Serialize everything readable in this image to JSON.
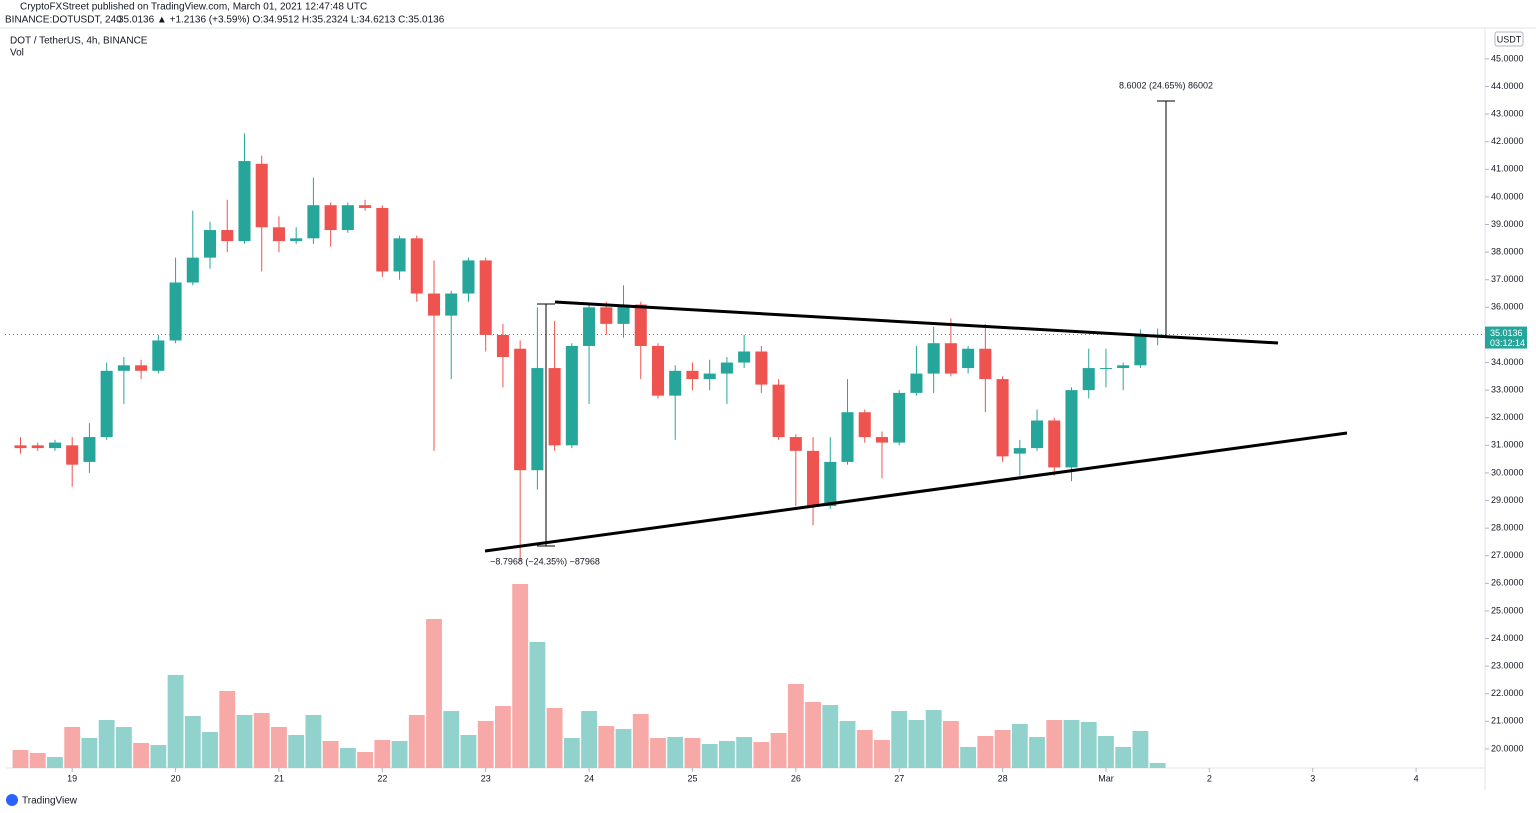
{
  "chart_data": {
    "type": "candlestick",
    "header": {
      "published": "CryptoFXStreet published on TradingView.com, March 01, 2021 12:47:48 UTC",
      "symbol": "BINANCE:DOTUSDT, 240",
      "quote": "35.0136 ▲ +1.2136 (+3.59%) O:34.9512 H:35.2324 L:34.6213 C:35.0136",
      "title": "DOT / TetherUS, 4h, BINANCE",
      "volume_label": "Vol"
    },
    "currency": "USDT",
    "last_price": 35.0136,
    "countdown": "03:12:14",
    "brand": "TradingView",
    "annotations": {
      "up_move": "8.6002 (24.65%) 86002",
      "down_move": "−8.7968 (−24.35%) −87968"
    },
    "open": [
      31.0,
      31.0,
      30.9,
      31.0,
      30.4,
      31.3,
      33.7,
      33.9,
      33.7,
      34.8,
      36.9,
      37.8,
      38.8,
      38.4,
      41.2,
      38.9,
      38.4,
      38.5,
      39.7,
      38.8,
      39.7,
      39.6,
      37.3,
      38.5,
      36.5,
      35.7,
      36.5,
      37.7,
      35.0,
      34.5,
      30.1,
      33.8,
      31.0,
      34.6,
      36.0,
      35.4,
      36.1,
      34.6,
      32.8,
      33.7,
      33.4,
      33.6,
      34.0,
      34.4,
      33.2,
      31.3,
      30.8,
      28.8,
      30.4,
      32.2,
      31.3,
      31.1,
      32.9,
      33.6,
      34.7,
      33.8,
      34.5,
      33.4,
      30.7,
      30.9,
      31.9,
      30.2,
      33.0,
      33.8,
      33.8,
      33.9,
      34.9512
    ],
    "high": [
      31.3,
      31.1,
      31.2,
      31.3,
      31.8,
      34.0,
      34.2,
      34.1,
      35.0,
      37.8,
      39.5,
      39.1,
      39.9,
      42.3,
      41.5,
      39.3,
      38.9,
      40.7,
      39.8,
      39.8,
      39.9,
      39.7,
      38.6,
      38.6,
      37.7,
      36.6,
      37.8,
      37.8,
      35.4,
      34.8,
      36.0,
      35.5,
      34.7,
      36.1,
      36.2,
      36.8,
      36.2,
      34.7,
      33.9,
      34.0,
      34.1,
      34.2,
      35.0,
      34.6,
      33.4,
      31.4,
      31.3,
      31.3,
      33.4,
      32.3,
      31.5,
      33.0,
      34.6,
      35.3,
      35.6,
      34.6,
      35.4,
      33.5,
      31.2,
      32.3,
      32.0,
      33.1,
      34.5,
      34.5,
      34.0,
      35.2,
      35.2324
    ],
    "low": [
      30.7,
      30.8,
      30.8,
      29.5,
      30.0,
      31.2,
      32.5,
      33.4,
      33.6,
      34.7,
      36.8,
      37.4,
      38.0,
      38.3,
      37.3,
      38.0,
      38.3,
      38.3,
      38.2,
      38.7,
      39.5,
      37.1,
      37.0,
      36.2,
      30.8,
      33.4,
      36.2,
      34.4,
      33.1,
      26.8,
      29.4,
      30.8,
      30.9,
      32.5,
      35.0,
      34.9,
      33.4,
      32.7,
      31.2,
      33.0,
      33.0,
      32.5,
      33.8,
      32.9,
      31.2,
      28.8,
      28.1,
      28.7,
      30.3,
      31.1,
      29.8,
      31.0,
      32.8,
      32.9,
      33.5,
      33.6,
      32.2,
      30.4,
      29.9,
      30.8,
      29.9,
      29.7,
      32.7,
      33.1,
      33.0,
      33.8,
      34.6213
    ],
    "close": [
      30.9,
      30.9,
      31.1,
      30.3,
      31.3,
      33.7,
      33.9,
      33.7,
      34.8,
      36.9,
      37.8,
      38.8,
      38.4,
      41.3,
      38.9,
      38.4,
      38.5,
      39.7,
      38.8,
      39.7,
      39.6,
      37.3,
      38.5,
      36.5,
      35.7,
      36.5,
      37.7,
      35.0,
      34.2,
      30.1,
      33.8,
      31.0,
      34.6,
      36.0,
      35.4,
      36.1,
      34.6,
      32.8,
      33.7,
      33.4,
      33.6,
      34.0,
      34.4,
      33.2,
      31.3,
      30.8,
      28.8,
      30.4,
      32.2,
      31.3,
      31.1,
      32.9,
      33.6,
      34.7,
      33.6,
      34.5,
      33.4,
      30.6,
      30.9,
      31.9,
      30.2,
      33.0,
      33.8,
      33.8,
      33.9,
      35.0,
      35.0136
    ],
    "volume": [
      18,
      15,
      11,
      41,
      30,
      48,
      41,
      25,
      23,
      93,
      52,
      36,
      77,
      53,
      55,
      41,
      33,
      53,
      27,
      20,
      16,
      28,
      27,
      53,
      149,
      57,
      33,
      47,
      62,
      184,
      126,
      60,
      30,
      57,
      42,
      39,
      54,
      30,
      31,
      30,
      24,
      27,
      31,
      26,
      35,
      84,
      66,
      63,
      47,
      38,
      28,
      57,
      48,
      58,
      47,
      21,
      32,
      38,
      44,
      31,
      48,
      48,
      46,
      32,
      21,
      37,
      5
    ],
    "up_color": "#26a69a",
    "down_color": "#ef5350",
    "volume_up_color": "#92d2cc",
    "volume_down_color": "#f7a9a7",
    "xlim": [
      -0.9,
      85
    ],
    "xticks": [
      {
        "value": 3,
        "label": "19"
      },
      {
        "value": 9,
        "label": "20"
      },
      {
        "value": 15,
        "label": "21"
      },
      {
        "value": 21,
        "label": "22"
      },
      {
        "value": 27,
        "label": "23"
      },
      {
        "value": 33,
        "label": "24"
      },
      {
        "value": 39,
        "label": "25"
      },
      {
        "value": 45,
        "label": "26"
      },
      {
        "value": 51,
        "label": "27"
      },
      {
        "value": 57,
        "label": "28"
      },
      {
        "value": 63,
        "label": "Mar"
      },
      {
        "value": 69,
        "label": "2"
      },
      {
        "value": 75,
        "label": "3"
      },
      {
        "value": 81,
        "label": "4"
      }
    ],
    "ylim": [
      19.31,
      46.12
    ],
    "yticks": [
      {
        "value": 20,
        "label": "20.0000"
      },
      {
        "value": 21,
        "label": "21.0000"
      },
      {
        "value": 22,
        "label": "22.0000"
      },
      {
        "value": 23,
        "label": "23.0000"
      },
      {
        "value": 24,
        "label": "24.0000"
      },
      {
        "value": 25,
        "label": "25.0000"
      },
      {
        "value": 26,
        "label": "26.0000"
      },
      {
        "value": 27,
        "label": "27.0000"
      },
      {
        "value": 28,
        "label": "28.0000"
      },
      {
        "value": 29,
        "label": "29.0000"
      },
      {
        "value": 30,
        "label": "30.0000"
      },
      {
        "value": 31,
        "label": "31.0000"
      },
      {
        "value": 32,
        "label": "32.0000"
      },
      {
        "value": 33,
        "label": "33.0000"
      },
      {
        "value": 34,
        "label": "34.0000"
      },
      {
        "value": 35,
        "label": "35.0000"
      },
      {
        "value": 36,
        "label": "36.0000"
      },
      {
        "value": 37,
        "label": "37.0000"
      },
      {
        "value": 38,
        "label": "38.0000"
      },
      {
        "value": 39,
        "label": "39.0000"
      },
      {
        "value": 40,
        "label": "40.0000"
      },
      {
        "value": 41,
        "label": "41.0000"
      },
      {
        "value": 42,
        "label": "42.0000"
      },
      {
        "value": 43,
        "label": "43.0000"
      },
      {
        "value": 44,
        "label": "44.0000"
      },
      {
        "value": 45,
        "label": "45.0000"
      }
    ],
    "vol_ylim": [
      0,
      740
    ]
  }
}
